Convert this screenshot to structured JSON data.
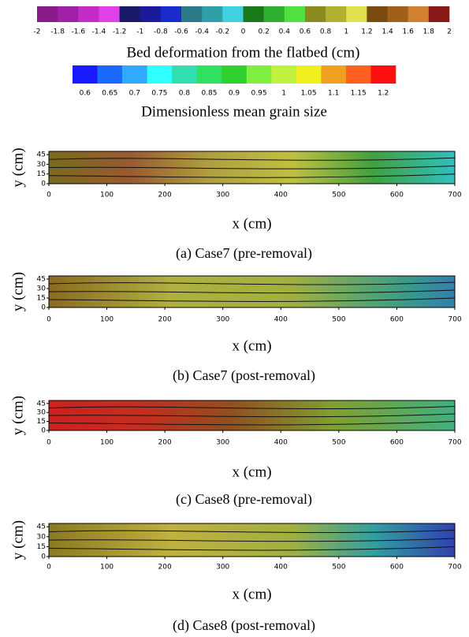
{
  "colorbars": [
    {
      "type": "colorbar",
      "title": "Bed deformation from the flatbed (cm)",
      "lim": [
        -2,
        2
      ],
      "tick_position": "edge",
      "ticks": [
        -2,
        -1.8,
        -1.6,
        -1.4,
        -1.2,
        -1,
        -0.8,
        -0.6,
        -0.4,
        -0.2,
        0,
        0.2,
        0.4,
        0.6,
        0.8,
        1,
        1.2,
        1.4,
        1.6,
        1.8,
        2
      ],
      "colors": [
        "#8b1a8b",
        "#a020a8",
        "#c42cc8",
        "#e040e8",
        "#1a1a6a",
        "#1a1a9a",
        "#1a2acc",
        "#2a7a8a",
        "#30a0a8",
        "#40d0e0",
        "#1a7a1a",
        "#30b030",
        "#50e040",
        "#8a8a20",
        "#b0b030",
        "#e0e050",
        "#7a4a10",
        "#a0601a",
        "#d08030",
        "#8a1a1a",
        "#c01a1a",
        "#f02020"
      ]
    },
    {
      "type": "colorbar",
      "title": "Dimensionless mean grain size",
      "lim": [
        0.575,
        1.225
      ],
      "tick_position": "center",
      "ticks": [
        0.6,
        0.65,
        0.7,
        0.75,
        0.8,
        0.85,
        0.9,
        0.95,
        1,
        1.05,
        1.1,
        1.15,
        1.2
      ],
      "colors": [
        "#1a1aff",
        "#1a6aff",
        "#30aaff",
        "#30ffff",
        "#30e0b0",
        "#30e060",
        "#30d030",
        "#80f040",
        "#c0f040",
        "#f0f020",
        "#f0a020",
        "#ff6020",
        "#ff1010"
      ]
    }
  ],
  "chart_data": [
    {
      "type": "heatmap",
      "xlabel": "x (cm)",
      "ylabel": "y (cm)",
      "caption": "(a) Case7 (pre-removal)",
      "xlim": [
        0,
        700
      ],
      "ylim": [
        0,
        50
      ],
      "xticks": [
        0,
        100,
        200,
        300,
        400,
        500,
        600,
        700
      ],
      "yticks": [
        0,
        15,
        30,
        45
      ]
    },
    {
      "type": "heatmap",
      "xlabel": "x (cm)",
      "ylabel": "y (cm)",
      "caption": "(b) Case7 (post-removal)",
      "xlim": [
        0,
        700
      ],
      "ylim": [
        0,
        50
      ],
      "xticks": [
        0,
        100,
        200,
        300,
        400,
        500,
        600,
        700
      ],
      "yticks": [
        0,
        15,
        30,
        45
      ]
    },
    {
      "type": "heatmap",
      "xlabel": "x (cm)",
      "ylabel": "y (cm)",
      "caption": "(c) Case8 (pre-removal)",
      "xlim": [
        0,
        700
      ],
      "ylim": [
        0,
        50
      ],
      "xticks": [
        0,
        100,
        200,
        300,
        400,
        500,
        600,
        700
      ],
      "yticks": [
        0,
        15,
        30,
        45
      ]
    },
    {
      "type": "heatmap",
      "xlabel": "x (cm)",
      "ylabel": "y (cm)",
      "caption": "(d) Case8 (post-removal)",
      "xlim": [
        0,
        700
      ],
      "ylim": [
        0,
        50
      ],
      "xticks": [
        0,
        100,
        200,
        300,
        400,
        500,
        600,
        700
      ],
      "yticks": [
        0,
        15,
        30,
        45
      ]
    }
  ]
}
